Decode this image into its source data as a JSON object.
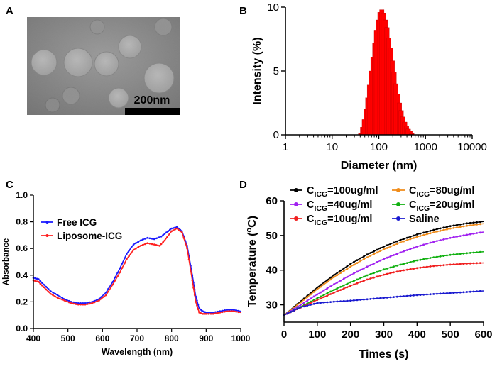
{
  "colors": {
    "axis": "#000000",
    "bar_fill": "#ff0000",
    "bar_edge": "#aa0000",
    "free_icg": "#1a1aff",
    "liposome_icg": "#ff2020",
    "c100": "#000000",
    "c80": "#f08c1a",
    "c40": "#a020f0",
    "c20": "#10b010",
    "c10": "#f02020",
    "saline": "#1a1ad0",
    "scale_bar": "#000000"
  },
  "panels": {
    "A": {
      "label": "A",
      "scale_text": "200nm",
      "image_icon": "tem-micrograph-image"
    },
    "B": {
      "label": "B"
    },
    "C": {
      "label": "C"
    },
    "D": {
      "label": "D"
    }
  },
  "chart_data": [
    {
      "panel": "B",
      "type": "bar",
      "xscale": "log",
      "xlabel": "Diameter (nm)",
      "ylabel": "Intensity (%)",
      "xlim": [
        1,
        10000
      ],
      "ylim": [
        0,
        10
      ],
      "xticks": [
        1,
        10,
        100,
        1000,
        10000
      ],
      "xtick_labels": [
        "1",
        "10",
        "100",
        "1000",
        "10000"
      ],
      "yticks": [
        0,
        5,
        10
      ],
      "ytick_labels": [
        "0",
        "5",
        "10"
      ],
      "x": [
        41,
        45,
        49,
        53,
        58,
        63,
        69,
        75,
        82,
        89,
        97,
        106,
        116,
        126,
        138,
        150,
        164,
        179,
        195,
        213,
        232,
        254,
        277,
        302,
        329,
        360,
        392,
        428,
        467,
        510
      ],
      "values": [
        0.1,
        0.6,
        1.2,
        2.0,
        2.9,
        3.9,
        5.0,
        6.1,
        7.2,
        8.2,
        9.0,
        9.6,
        9.8,
        9.5,
        9.0,
        8.4,
        7.6,
        6.8,
        5.8,
        4.9,
        4.0,
        3.2,
        2.5,
        1.9,
        1.4,
        1.0,
        0.7,
        0.45,
        0.3,
        0.1
      ]
    },
    {
      "panel": "C",
      "type": "line",
      "xlabel": "Wavelength (nm)",
      "ylabel": "Absorbance",
      "xlim": [
        400,
        1000
      ],
      "ylim": [
        0,
        1.0
      ],
      "xticks": [
        400,
        500,
        600,
        700,
        800,
        900,
        1000
      ],
      "xtick_labels": [
        "400",
        "500",
        "600",
        "700",
        "800",
        "900",
        "1000"
      ],
      "yticks": [
        0.0,
        0.2,
        0.4,
        0.6,
        0.8,
        1.0
      ],
      "ytick_labels": [
        "0.0",
        "0.2",
        "0.4",
        "0.6",
        "0.8",
        "1.0"
      ],
      "legend_position": "top-left",
      "series": [
        {
          "name": "Free ICG",
          "x": [
            400,
            415,
            430,
            450,
            470,
            490,
            510,
            530,
            550,
            570,
            590,
            610,
            630,
            650,
            670,
            690,
            710,
            730,
            750,
            770,
            785,
            800,
            815,
            830,
            845,
            860,
            870,
            880,
            890,
            900,
            920,
            940,
            960,
            980,
            1000
          ],
          "y": [
            0.38,
            0.37,
            0.33,
            0.28,
            0.25,
            0.22,
            0.2,
            0.19,
            0.19,
            0.2,
            0.22,
            0.27,
            0.35,
            0.45,
            0.56,
            0.63,
            0.66,
            0.68,
            0.67,
            0.69,
            0.72,
            0.75,
            0.76,
            0.73,
            0.62,
            0.4,
            0.24,
            0.15,
            0.13,
            0.12,
            0.12,
            0.13,
            0.14,
            0.14,
            0.13
          ]
        },
        {
          "name": "Liposome-ICG",
          "x": [
            400,
            415,
            430,
            450,
            470,
            490,
            510,
            530,
            550,
            570,
            590,
            610,
            630,
            650,
            670,
            690,
            710,
            730,
            750,
            765,
            780,
            800,
            815,
            830,
            845,
            860,
            870,
            880,
            890,
            900,
            920,
            940,
            960,
            980,
            1000
          ],
          "y": [
            0.36,
            0.35,
            0.31,
            0.26,
            0.23,
            0.21,
            0.19,
            0.18,
            0.18,
            0.19,
            0.21,
            0.25,
            0.33,
            0.42,
            0.52,
            0.59,
            0.62,
            0.64,
            0.63,
            0.62,
            0.66,
            0.73,
            0.75,
            0.72,
            0.6,
            0.36,
            0.2,
            0.12,
            0.11,
            0.11,
            0.11,
            0.12,
            0.13,
            0.13,
            0.12
          ]
        }
      ]
    },
    {
      "panel": "D",
      "type": "line",
      "xlabel": "Times (s)",
      "ylabel_main": "Temperature (",
      "ylabel_sup": "o",
      "ylabel_end": "C)",
      "xlim": [
        0,
        600
      ],
      "ylim": [
        25,
        60
      ],
      "xticks": [
        0,
        100,
        200,
        300,
        400,
        500,
        600
      ],
      "xtick_labels": [
        "0",
        "100",
        "200",
        "300",
        "400",
        "500",
        "600"
      ],
      "yticks": [
        30,
        40,
        50,
        60
      ],
      "ytick_labels": [
        "30",
        "40",
        "50",
        "60"
      ],
      "legend_position": "top",
      "series": [
        {
          "key": "c100",
          "name_main": "C",
          "name_sub": "ICG",
          "name_end": "=100ug/ml",
          "x": [
            0,
            50,
            100,
            150,
            200,
            250,
            300,
            350,
            400,
            450,
            500,
            550,
            600
          ],
          "y": [
            27.0,
            31.0,
            35.0,
            38.6,
            41.8,
            44.5,
            46.8,
            48.7,
            50.3,
            51.6,
            52.7,
            53.5,
            54.0
          ]
        },
        {
          "key": "c80",
          "name_main": "C",
          "name_sub": "ICG",
          "name_end": "=80ug/ml",
          "x": [
            0,
            50,
            100,
            150,
            200,
            250,
            300,
            350,
            400,
            450,
            500,
            550,
            600
          ],
          "y": [
            27.0,
            30.7,
            34.5,
            38.0,
            41.0,
            43.7,
            46.0,
            48.0,
            49.6,
            50.9,
            52.0,
            52.8,
            53.4
          ]
        },
        {
          "key": "c40",
          "name_main": "C",
          "name_sub": "ICG",
          "name_end": "=40ug/ml",
          "x": [
            0,
            50,
            100,
            150,
            200,
            250,
            300,
            350,
            400,
            450,
            500,
            550,
            600
          ],
          "y": [
            27.0,
            30.0,
            33.0,
            35.9,
            38.6,
            41.0,
            43.2,
            45.1,
            46.8,
            48.2,
            49.3,
            50.2,
            51.0
          ]
        },
        {
          "key": "c20",
          "name_main": "C",
          "name_sub": "ICG",
          "name_end": "=20ug/ml",
          "x": [
            0,
            50,
            100,
            150,
            200,
            250,
            300,
            350,
            400,
            450,
            500,
            550,
            600
          ],
          "y": [
            27.0,
            29.4,
            31.9,
            34.3,
            36.5,
            38.5,
            40.2,
            41.6,
            42.8,
            43.7,
            44.4,
            44.9,
            45.3
          ]
        },
        {
          "key": "c10",
          "name_main": "C",
          "name_sub": "ICG",
          "name_end": "=10ug/ml",
          "x": [
            0,
            50,
            100,
            150,
            200,
            250,
            300,
            350,
            400,
            450,
            500,
            550,
            600
          ],
          "y": [
            27.0,
            29.2,
            31.4,
            33.5,
            35.5,
            37.3,
            38.7,
            39.8,
            40.6,
            41.2,
            41.6,
            41.9,
            42.1
          ]
        },
        {
          "key": "saline",
          "name_main": "Saline",
          "name_sub": "",
          "name_end": "",
          "x": [
            0,
            50,
            100,
            150,
            200,
            250,
            300,
            350,
            400,
            450,
            500,
            550,
            600
          ],
          "y": [
            27.0,
            29.3,
            30.5,
            30.9,
            31.2,
            31.6,
            32.0,
            32.4,
            32.8,
            33.1,
            33.4,
            33.7,
            34.0
          ]
        }
      ]
    }
  ]
}
